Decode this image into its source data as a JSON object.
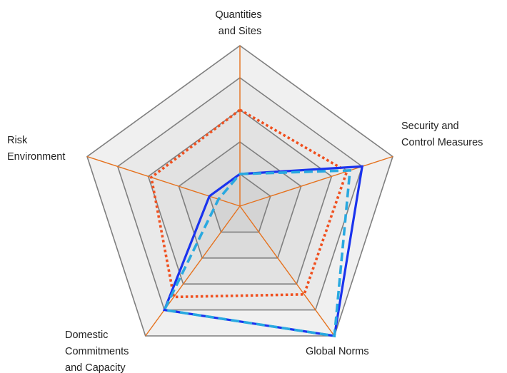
{
  "chart_data": {
    "type": "radar",
    "axes": [
      [
        "Quantities",
        "and Sites"
      ],
      [
        "Security and",
        "Control Measures"
      ],
      [
        "Global Norms"
      ],
      [
        "Domestic",
        "Commitments",
        "and Capacity"
      ],
      [
        "Risk",
        "Environment"
      ]
    ],
    "range": [
      0,
      5
    ],
    "rings": 5,
    "grid": true,
    "series": [
      {
        "values": [
          1,
          4,
          5,
          4,
          1
        ],
        "color": "#1a33ee",
        "style": "solid"
      },
      {
        "values": [
          1,
          3.6,
          5,
          4,
          0.7
        ],
        "color": "#29a9e0",
        "style": "dashed"
      },
      {
        "values": [
          3,
          3.5,
          3.4,
          3.5,
          2.9
        ],
        "color": "#f0501f",
        "style": "dotted"
      }
    ],
    "colors": {
      "band_outer": "#f0f0f0",
      "band_inner": "#d6d6d6",
      "grid_line": "#7f7f7f",
      "spoke": "#e5711d"
    }
  }
}
